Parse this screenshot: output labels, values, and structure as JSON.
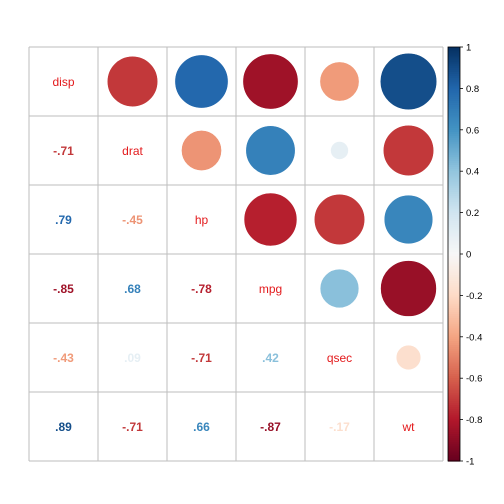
{
  "chart_data": {
    "type": "heatmap",
    "title": "",
    "variables": [
      "disp",
      "drat",
      "hp",
      "mpg",
      "qsec",
      "wt"
    ],
    "matrix": [
      [
        1.0,
        -0.71,
        0.79,
        -0.85,
        -0.43,
        0.89
      ],
      [
        -0.71,
        1.0,
        -0.45,
        0.68,
        0.09,
        -0.71
      ],
      [
        0.79,
        -0.45,
        1.0,
        -0.78,
        -0.71,
        0.66
      ],
      [
        -0.85,
        0.68,
        -0.78,
        1.0,
        0.42,
        -0.87
      ],
      [
        -0.43,
        0.09,
        -0.71,
        0.42,
        1.0,
        -0.17
      ],
      [
        0.89,
        -0.71,
        0.66,
        -0.87,
        -0.17,
        1.0
      ]
    ],
    "upper_display": "circle",
    "lower_display": "number",
    "diagonal_display": "label",
    "colorbar": {
      "range": [
        -1,
        1
      ],
      "ticks": [
        "-1",
        "-0.8",
        "-0.6",
        "-0.4",
        "-0.2",
        "0",
        "0.2",
        "0.4",
        "0.6",
        "0.8",
        "1"
      ],
      "tick_values": [
        -1,
        -0.8,
        -0.6,
        -0.4,
        -0.2,
        0,
        0.2,
        0.4,
        0.6,
        0.8,
        1
      ]
    },
    "colors": {
      "negative_end": "#67001f",
      "negative_mid": "#b2182b",
      "negative_light": "#d6604d",
      "negative_pale": "#f4a582",
      "negative_faint": "#fddbc7",
      "zero": "#f7f7f7",
      "positive_faint": "#d1e5f0",
      "positive_pale": "#92c5de",
      "positive_light": "#4393c3",
      "positive_mid": "#2166ac",
      "positive_end": "#053061",
      "label": "#e31a1c",
      "grid": "#bebebe"
    }
  }
}
